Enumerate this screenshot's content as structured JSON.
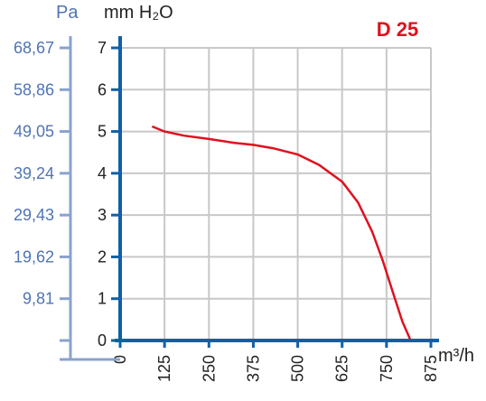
{
  "chart_data": {
    "type": "line",
    "title": "D 25",
    "xlabel": "m³/h",
    "ylabel": "mm H₂O",
    "ylabel_secondary": "Pa",
    "x_ticks": [
      0,
      125,
      250,
      375,
      500,
      625,
      750,
      875
    ],
    "y_ticks": [
      0,
      1,
      2,
      3,
      4,
      5,
      6,
      7
    ],
    "y_ticks_secondary": [
      "9,81",
      "19,62",
      "29,43",
      "39,24",
      "49,05",
      "58,86",
      "68,67"
    ],
    "xlim": [
      0,
      875
    ],
    "ylim": [
      0,
      7
    ],
    "grid": true,
    "series": [
      {
        "color": "#e0101e",
        "points": [
          [
            90,
            5.12
          ],
          [
            125,
            5.0
          ],
          [
            180,
            4.9
          ],
          [
            250,
            4.82
          ],
          [
            320,
            4.73
          ],
          [
            375,
            4.68
          ],
          [
            430,
            4.6
          ],
          [
            500,
            4.45
          ],
          [
            560,
            4.2
          ],
          [
            625,
            3.8
          ],
          [
            670,
            3.3
          ],
          [
            710,
            2.6
          ],
          [
            740,
            1.9
          ],
          [
            770,
            1.1
          ],
          [
            795,
            0.45
          ],
          [
            818,
            0.0
          ]
        ]
      }
    ]
  },
  "colors": {
    "axis": "#1060a8",
    "axis_secondary": "#8aa2cc",
    "grid": "#c8c8c8",
    "curve": "#e0101e",
    "title": "#e0101e"
  }
}
